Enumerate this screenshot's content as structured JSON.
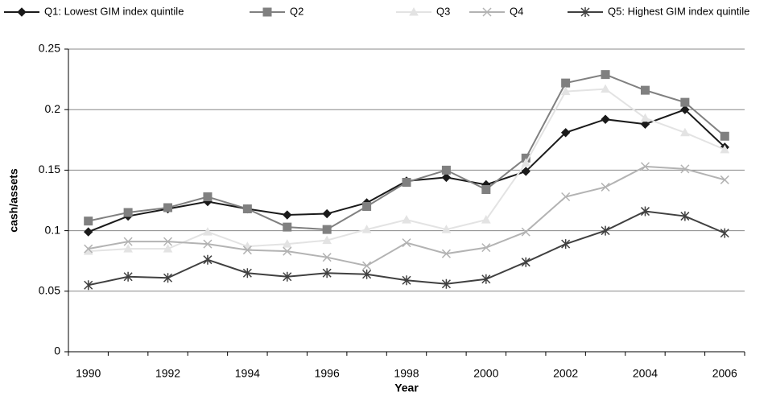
{
  "chart_data": {
    "type": "line",
    "x_label": "Year",
    "y_label": "cash/assets",
    "categories": [
      "1990",
      null,
      "1992",
      null,
      "1994",
      null,
      "1996",
      null,
      "1998",
      null,
      "2000",
      null,
      "2002",
      null,
      "2004",
      null,
      "2006"
    ],
    "ylim": [
      0,
      0.25
    ],
    "yticks": [
      0,
      0.05,
      0.1,
      0.15,
      0.2,
      0.25
    ],
    "grid": true,
    "legend": "top",
    "series": [
      {
        "name": "Q1: Lowest GIM index quintile",
        "color": "#1a1a1a",
        "marker": "diamond",
        "values": [
          0.099,
          0.112,
          0.118,
          0.124,
          0.118,
          0.113,
          0.114,
          0.123,
          0.141,
          0.144,
          0.138,
          0.149,
          0.181,
          0.192,
          0.188,
          0.2,
          0.169
        ]
      },
      {
        "name": "Q2",
        "color": "#808080",
        "marker": "square",
        "values": [
          0.108,
          0.115,
          0.119,
          0.128,
          0.118,
          0.103,
          0.101,
          0.12,
          0.14,
          0.15,
          0.134,
          0.16,
          0.222,
          0.229,
          0.216,
          0.206,
          0.178
        ]
      },
      {
        "name": "Q3",
        "color": "#e3e3e3",
        "marker": "triangle",
        "values": [
          0.083,
          0.085,
          0.085,
          0.099,
          0.087,
          0.089,
          0.092,
          0.101,
          0.109,
          0.101,
          0.109,
          0.156,
          0.215,
          0.217,
          0.193,
          0.181,
          0.167
        ]
      },
      {
        "name": "Q4",
        "color": "#b3b3b3",
        "marker": "x",
        "values": [
          0.085,
          0.091,
          0.091,
          0.089,
          0.084,
          0.083,
          0.078,
          0.071,
          0.09,
          0.081,
          0.086,
          0.099,
          0.128,
          0.136,
          0.153,
          0.151,
          0.142
        ]
      },
      {
        "name": "Q5: Highest GIM index quintile",
        "color": "#404040",
        "marker": "star",
        "values": [
          0.055,
          0.062,
          0.061,
          0.076,
          0.065,
          0.062,
          0.065,
          0.064,
          0.059,
          0.056,
          0.06,
          0.074,
          0.089,
          0.1,
          0.116,
          0.112,
          0.098
        ]
      }
    ]
  }
}
